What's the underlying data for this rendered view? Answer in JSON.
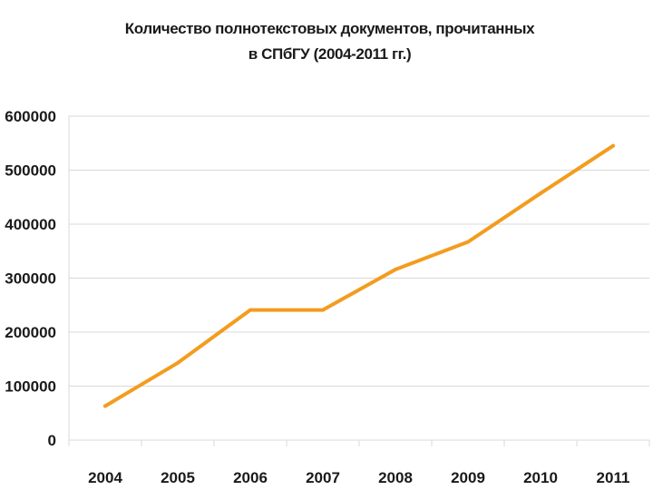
{
  "chart_data": {
    "type": "line",
    "title": [
      "Количество полнотекстовых документов, прочитанных",
      "в СПбГУ (2004-2011 гг.)"
    ],
    "categories": [
      "2004",
      "2005",
      "2006",
      "2007",
      "2008",
      "2009",
      "2010",
      "2011"
    ],
    "series": [
      {
        "values": [
          63000,
          143000,
          241000,
          241000,
          316000,
          367000,
          457000,
          545000
        ]
      }
    ],
    "ylim": [
      0,
      600000
    ],
    "yticks": [
      "0",
      "100000",
      "200000",
      "300000",
      "400000",
      "500000",
      "600000"
    ],
    "grid": true,
    "line_color": "#f39c1f",
    "grid_color": "#d9d9d9"
  }
}
